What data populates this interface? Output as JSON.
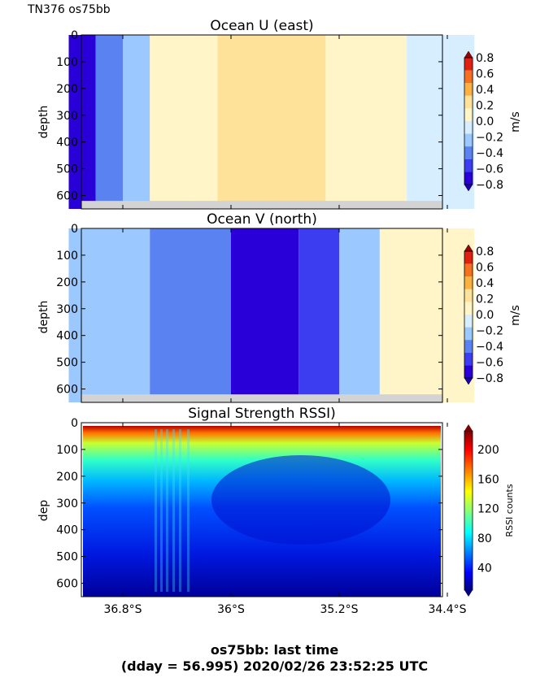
{
  "figure": {
    "corner_label": "TN376 os75bb",
    "bottom_line1": "os75bb: last time",
    "bottom_line2": "(dday = 56.995) 2020/02/26 23:52:25 UTC"
  },
  "colors": {
    "velocity_levels": [
      "#2a00d8",
      "#3c3cf0",
      "#5a82f0",
      "#9ac8ff",
      "#d6eeff",
      "#fff5c8",
      "#ffe29a",
      "#fbb040",
      "#f57020",
      "#e02010"
    ],
    "rssi_colormap": "jet",
    "missing_data": "#d3d3d3"
  },
  "chart_data": [
    {
      "type": "heatmap",
      "title": "Ocean U (east)",
      "xlabel": "",
      "ylabel": "depth",
      "ylim": [
        650,
        0
      ],
      "yticks": [
        0,
        100,
        200,
        300,
        400,
        500,
        600
      ],
      "x_extent": [
        "37.2°S",
        "34.2°S"
      ],
      "colorbar": {
        "label": "m/s",
        "range": [
          -0.8,
          0.8
        ],
        "ticks": [
          "0.8",
          "0.6",
          "0.4",
          "0.2",
          "0.0",
          "−0.2",
          "−0.4",
          "−0.6",
          "−0.8"
        ]
      },
      "bands": [
        {
          "x_from": "37.2°S",
          "x_to": "37.0°S",
          "value": -0.7
        },
        {
          "x_from": "37.0°S",
          "x_to": "36.8°S",
          "value": -0.45
        },
        {
          "x_from": "36.8°S",
          "x_to": "36.6°S",
          "value": -0.3
        },
        {
          "x_from": "36.6°S",
          "x_to": "36.3°S",
          "value": 0.1
        },
        {
          "x_from": "36.3°S",
          "x_to": "36.1°S",
          "value": 0.05
        },
        {
          "x_from": "36.1°S",
          "x_to": "35.3°S",
          "value": 0.3
        },
        {
          "x_from": "35.3°S",
          "x_to": "34.7°S",
          "value": 0.05
        },
        {
          "x_from": "34.7°S",
          "x_to": "34.2°S",
          "value": -0.1
        }
      ]
    },
    {
      "type": "heatmap",
      "title": "Ocean V (north)",
      "xlabel": "",
      "ylabel": "depth",
      "ylim": [
        650,
        0
      ],
      "yticks": [
        0,
        100,
        200,
        300,
        400,
        500,
        600
      ],
      "x_extent": [
        "37.2°S",
        "34.2°S"
      ],
      "colorbar": {
        "label": "m/s",
        "range": [
          -0.8,
          0.8
        ],
        "ticks": [
          "0.8",
          "0.6",
          "0.4",
          "0.2",
          "0.0",
          "−0.2",
          "−0.4",
          "−0.6",
          "−0.8"
        ]
      },
      "bands": [
        {
          "x_from": "37.2°S",
          "x_to": "36.6°S",
          "value": -0.3
        },
        {
          "x_from": "36.6°S",
          "x_to": "36.0°S",
          "value": -0.45
        },
        {
          "x_from": "36.0°S",
          "x_to": "35.5°S",
          "value": -0.7
        },
        {
          "x_from": "35.5°S",
          "x_to": "35.2°S",
          "value": -0.5
        },
        {
          "x_from": "35.2°S",
          "x_to": "34.9°S",
          "value": -0.25
        },
        {
          "x_from": "34.9°S",
          "x_to": "34.2°S",
          "value": 0.05
        }
      ]
    },
    {
      "type": "heatmap",
      "title": "Signal Strength RSSI)",
      "xlabel": "",
      "ylabel": "dep",
      "ylim": [
        650,
        0
      ],
      "yticks": [
        0,
        100,
        200,
        300,
        400,
        500,
        600
      ],
      "xticks": [
        "36.8°S",
        "36°S",
        "35.2°S",
        "34.4°S"
      ],
      "colorbar": {
        "label": "RSSI counts",
        "range": [
          10,
          225
        ],
        "ticks": [
          "200",
          "160",
          "120",
          "80",
          "40"
        ]
      },
      "depth_profile": [
        {
          "depth": 30,
          "value": 205
        },
        {
          "depth": 60,
          "value": 150
        },
        {
          "depth": 100,
          "value": 125
        },
        {
          "depth": 150,
          "value": 100
        },
        {
          "depth": 200,
          "value": 80
        },
        {
          "depth": 250,
          "value": 60
        },
        {
          "depth": 300,
          "value": 48
        },
        {
          "depth": 400,
          "value": 38
        },
        {
          "depth": 500,
          "value": 30
        },
        {
          "depth": 650,
          "value": 18
        }
      ]
    }
  ]
}
